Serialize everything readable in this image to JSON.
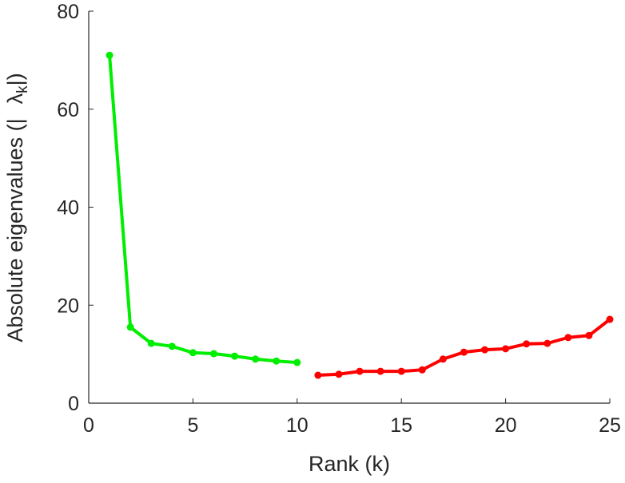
{
  "chart_data": {
    "type": "line",
    "title": "",
    "xlabel": "Rank (k)",
    "ylabel": "Absolute eigenvalues (|λ_k|)",
    "ylabel_prefix": "Absolute eigenvalues (|",
    "ylabel_lambda": "λ",
    "ylabel_sub": "k",
    "ylabel_suffix": "|)",
    "xlim": [
      0,
      25
    ],
    "ylim": [
      0,
      80
    ],
    "xticks": [
      "0",
      "5",
      "10",
      "15",
      "20",
      "25"
    ],
    "yticks": [
      "0",
      "20",
      "40",
      "60",
      "80"
    ],
    "grid": false,
    "series": [
      {
        "name": "top",
        "color": "#00ee00",
        "x": [
          1,
          2,
          3,
          4,
          5,
          6,
          7,
          8,
          9,
          10
        ],
        "values": [
          71.0,
          15.5,
          12.2,
          11.6,
          10.3,
          10.1,
          9.6,
          9.0,
          8.6,
          8.3
        ]
      },
      {
        "name": "bottom",
        "color": "#ff0000",
        "x": [
          11,
          12,
          13,
          14,
          15,
          16,
          17,
          18,
          19,
          20,
          21,
          22,
          23,
          24,
          25
        ],
        "values": [
          5.7,
          5.9,
          6.5,
          6.5,
          6.5,
          6.8,
          9.0,
          10.4,
          10.9,
          11.1,
          12.1,
          12.2,
          13.4,
          13.8,
          17.1
        ]
      }
    ]
  }
}
